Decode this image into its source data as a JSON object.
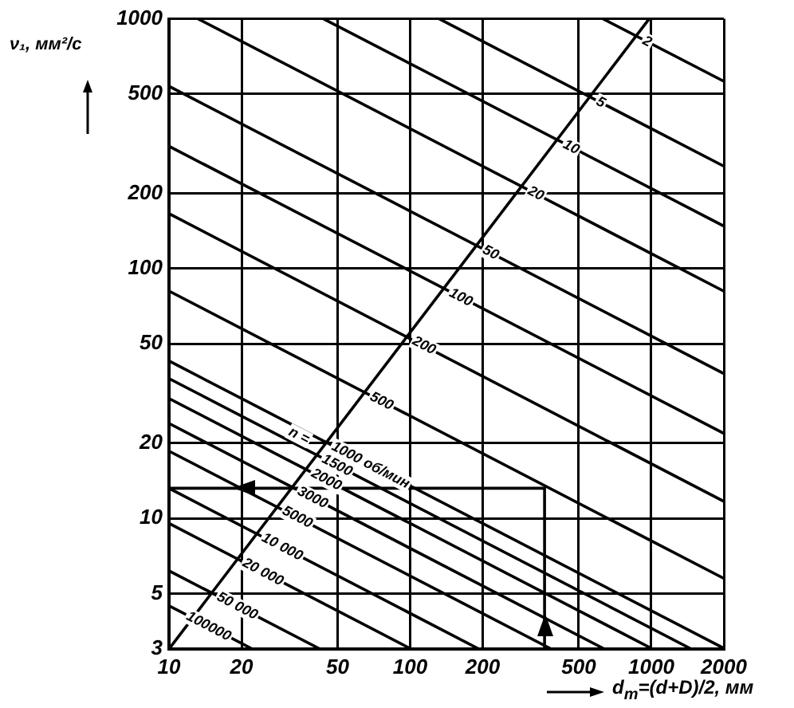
{
  "chart_data": {
    "type": "line",
    "xlabel": "d$_{m}$=(d+D)/2, мм",
    "ylabel": "ν₁, мм²/с",
    "log": "xy",
    "xlim": [
      10,
      2000
    ],
    "ylim": [
      3,
      1000
    ],
    "xticks": [
      10,
      20,
      50,
      100,
      200,
      500,
      1000,
      2000
    ],
    "yticks": [
      3,
      5,
      10,
      20,
      50,
      100,
      200,
      500,
      1000
    ],
    "grid": true,
    "legend": false,
    "marker": "none",
    "line_style": "solid",
    "series": [
      {
        "color": "#000000",
        "x": [
          631,
          2000
        ],
        "values": [
          1000,
          562
        ]
      },
      {
        "color": "#000000",
        "x": [
          132,
          2000
        ],
        "values": [
          1000,
          257
        ]
      },
      {
        "color": "#000000",
        "x": [
          43.7,
          2000
        ],
        "values": [
          1000,
          148
        ]
      },
      {
        "color": "#000000",
        "x": [
          13.2,
          2000
        ],
        "values": [
          1000,
          81.2
        ]
      },
      {
        "color": "#000000",
        "x": [
          10,
          2000
        ],
        "values": [
          537,
          38
        ]
      },
      {
        "color": "#000000",
        "x": [
          10,
          2000
        ],
        "values": [
          309,
          21.9
        ]
      },
      {
        "color": "#000000",
        "x": [
          10,
          2000
        ],
        "values": [
          166,
          11.7
        ]
      },
      {
        "color": "#000000",
        "x": [
          10,
          2000
        ],
        "values": [
          81.3,
          5.75
        ]
      },
      {
        "color": "#000000",
        "x": [
          10,
          2000
        ],
        "values": [
          42.7,
          3.02
        ]
      },
      {
        "color": "#000000",
        "x": [
          10,
          1466
        ],
        "values": [
          36.3,
          3
        ]
      },
      {
        "color": "#000000",
        "x": [
          10,
          1014
        ],
        "values": [
          30.2,
          3
        ]
      },
      {
        "color": "#000000",
        "x": [
          10,
          640
        ],
        "values": [
          24,
          3
        ]
      },
      {
        "color": "#000000",
        "x": [
          10,
          385
        ],
        "values": [
          18.6,
          3
        ]
      },
      {
        "color": "#000000",
        "x": [
          10,
          193
        ],
        "values": [
          13.2,
          3
        ]
      },
      {
        "color": "#000000",
        "x": [
          10,
          101
        ],
        "values": [
          9.55,
          3
        ]
      },
      {
        "color": "#000000",
        "x": [
          10,
          42.3
        ],
        "values": [
          6.17,
          3
        ]
      },
      {
        "color": "#000000",
        "x": [
          10,
          22.2
        ],
        "values": [
          4.47,
          3
        ]
      },
      {
        "color": "#000000",
        "x": [
          10,
          980
        ],
        "values": [
          3,
          1000
        ]
      },
      {
        "color": "#000000",
        "x": [
          361,
          361,
          10
        ],
        "values": [
          3,
          13.2,
          13.2
        ]
      }
    ],
    "annotations": [
      {
        "text": "2",
        "x": 881,
        "y": 846
      },
      {
        "text": "5",
        "x": 565,
        "y": 483
      },
      {
        "text": "10",
        "x": 412,
        "y": 325
      },
      {
        "text": "20",
        "x": 294,
        "y": 212
      },
      {
        "text": "50",
        "x": 191,
        "y": 123
      },
      {
        "text": "100",
        "x": 139,
        "y": 82.8
      },
      {
        "text": "200",
        "x": 97.8,
        "y": 53.1
      },
      {
        "text": "500",
        "x": 65.2,
        "y": 31.8
      },
      {
        "text": "n =",
        "x": 30,
        "y": 23
      },
      {
        "text": "1000 об/мин",
        "x": 45.2,
        "y": 20.1
      },
      {
        "text": "1500",
        "x": 41.2,
        "y": 17.9
      },
      {
        "text": "2000",
        "x": 37.2,
        "y": 15.7
      },
      {
        "text": "3000",
        "x": 32.6,
        "y": 13.3
      },
      {
        "text": "5000",
        "x": 28.2,
        "y": 11.1
      },
      {
        "text": "10 000",
        "x": 23.2,
        "y": 8.66
      },
      {
        "text": "20 000",
        "x": 19.3,
        "y": 6.87
      },
      {
        "text": "50 000",
        "x": 15.1,
        "y": 5.02
      },
      {
        "text": "100000",
        "x": 11.3,
        "y": 4.2
      }
    ]
  }
}
